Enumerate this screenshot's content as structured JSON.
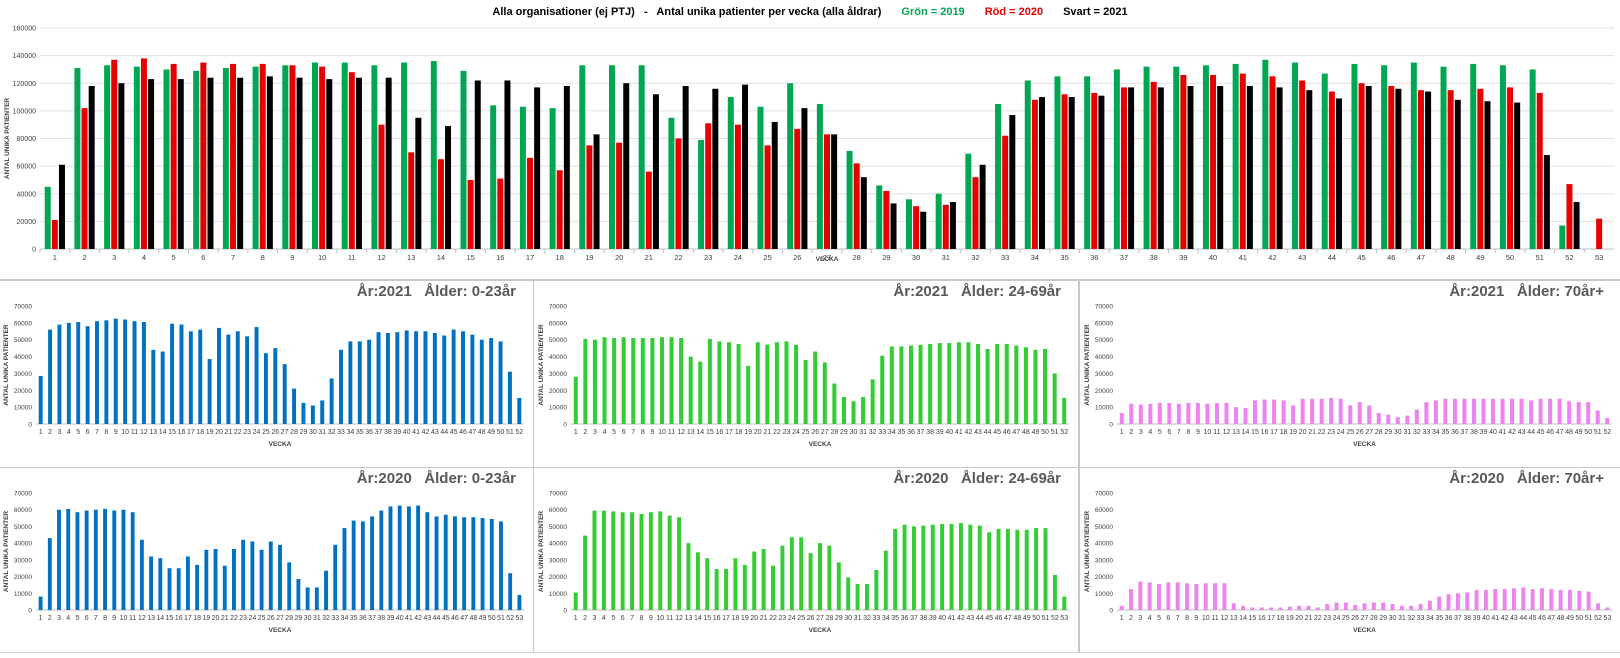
{
  "main_title": {
    "text": "Alla organisationer (ej PTJ)   -   Antal unika patienter per vecka (alla åldrar)",
    "legend_green": "Grön = 2019",
    "legend_red": "Röd = 2020",
    "legend_black": "Svart = 2021"
  },
  "colors": {
    "green": "#00a651",
    "red": "#e60000",
    "black": "#000000",
    "blue": "#0070c0",
    "lime": "#33cc33",
    "pink": "#ee82ee"
  },
  "chart_data": [
    {
      "id": "main",
      "type": "bar",
      "title": "Alla organisationer (ej PTJ)   -   Antal unika patienter per vecka (alla åldrar)",
      "xlabel": "VECKA",
      "ylabel": "ANTAL UNIKA PATIENTER",
      "ylim": [
        0,
        160000
      ],
      "yticks": [
        0,
        20000,
        40000,
        60000,
        80000,
        100000,
        120000,
        140000,
        160000
      ],
      "grid": true,
      "categories": [
        "1",
        "2",
        "3",
        "4",
        "5",
        "6",
        "7",
        "8",
        "9",
        "10",
        "11",
        "12",
        "13",
        "14",
        "15",
        "16",
        "17",
        "18",
        "19",
        "20",
        "21",
        "22",
        "23",
        "24",
        "25",
        "26",
        "27",
        "28",
        "29",
        "30",
        "31",
        "32",
        "33",
        "34",
        "35",
        "36",
        "37",
        "38",
        "39",
        "40",
        "41",
        "42",
        "43",
        "44",
        "45",
        "46",
        "47",
        "48",
        "49",
        "50",
        "51",
        "52",
        "53"
      ],
      "series": [
        {
          "name": "Grön = 2019",
          "color": "#00a651",
          "values": [
            45000,
            131000,
            133000,
            132000,
            130000,
            129000,
            131000,
            132000,
            133000,
            135000,
            135000,
            133000,
            135000,
            136000,
            129000,
            104000,
            103000,
            102000,
            133000,
            133000,
            133000,
            95000,
            79000,
            110000,
            103000,
            120000,
            105000,
            71000,
            46000,
            36000,
            40000,
            69000,
            105000,
            122000,
            125000,
            125000,
            130000,
            132000,
            132000,
            133000,
            134000,
            137000,
            135000,
            127000,
            134000,
            133000,
            135000,
            132000,
            134000,
            133000,
            130000,
            17000,
            null
          ]
        },
        {
          "name": "Röd = 2020",
          "color": "#e60000",
          "values": [
            21000,
            102000,
            137000,
            138000,
            134000,
            135000,
            134000,
            134000,
            133000,
            132000,
            128000,
            90000,
            70000,
            65000,
            50000,
            51000,
            66000,
            57000,
            75000,
            77000,
            56000,
            80000,
            91000,
            90000,
            75000,
            87000,
            83000,
            62000,
            42000,
            31000,
            32000,
            52000,
            82000,
            108000,
            112000,
            113000,
            117000,
            121000,
            126000,
            126000,
            127000,
            125000,
            122000,
            114000,
            120000,
            118000,
            115000,
            115000,
            116000,
            117000,
            113000,
            47000,
            22000
          ]
        },
        {
          "name": "Svart = 2021",
          "color": "#000000",
          "values": [
            61000,
            118000,
            120000,
            123000,
            123000,
            124000,
            124000,
            125000,
            124000,
            123000,
            124000,
            124000,
            95000,
            89000,
            122000,
            122000,
            117000,
            118000,
            83000,
            120000,
            112000,
            118000,
            116000,
            119000,
            92000,
            102000,
            83000,
            52000,
            33000,
            27000,
            34000,
            61000,
            97000,
            110000,
            110000,
            111000,
            117000,
            117000,
            118000,
            118000,
            118000,
            117000,
            115000,
            109000,
            118000,
            116000,
            114000,
            108000,
            107000,
            106000,
            68000,
            34000,
            null
          ]
        }
      ]
    },
    {
      "id": "p2021_0_23",
      "type": "bar",
      "title": "År:2021   Ålder: 0-23år",
      "xlabel": "VECKA",
      "ylabel": "ANTAL UNIKA PATIENTER",
      "ylim": [
        0,
        70000
      ],
      "yticks": [
        0,
        10000,
        20000,
        30000,
        40000,
        50000,
        60000,
        70000
      ],
      "color": "#0070c0",
      "categories": [
        "1",
        "2",
        "3",
        "4",
        "5",
        "6",
        "7",
        "8",
        "9",
        "10",
        "11",
        "12",
        "13",
        "14",
        "15",
        "16",
        "17",
        "18",
        "19",
        "20",
        "21",
        "22",
        "23",
        "24",
        "25",
        "26",
        "27",
        "28",
        "29",
        "30",
        "31",
        "32",
        "33",
        "34",
        "35",
        "36",
        "37",
        "38",
        "39",
        "40",
        "41",
        "42",
        "43",
        "44",
        "45",
        "46",
        "47",
        "48",
        "49",
        "50",
        "51",
        "52"
      ],
      "values": [
        28500,
        56000,
        59000,
        60000,
        60500,
        58000,
        61000,
        61500,
        62500,
        62000,
        61000,
        60500,
        44000,
        43000,
        59500,
        59000,
        55000,
        56000,
        38500,
        57000,
        53000,
        55000,
        52000,
        57500,
        42000,
        45000,
        35500,
        21000,
        12500,
        11000,
        14000,
        27000,
        44000,
        49000,
        49000,
        50000,
        54500,
        54000,
        54500,
        55500,
        55000,
        55000,
        54000,
        52500,
        56000,
        55000,
        53000,
        50000,
        51000,
        49000,
        31000,
        15500
      ]
    },
    {
      "id": "p2021_24_69",
      "type": "bar",
      "title": "År:2021   Ålder: 24-69år",
      "xlabel": "VECKA",
      "ylabel": "ANTAL UNIKA PATIENTER",
      "ylim": [
        0,
        70000
      ],
      "yticks": [
        0,
        10000,
        20000,
        30000,
        40000,
        50000,
        60000,
        70000
      ],
      "color": "#33cc33",
      "categories": [
        "1",
        "2",
        "3",
        "4",
        "5",
        "6",
        "7",
        "8",
        "9",
        "10",
        "11",
        "12",
        "13",
        "14",
        "15",
        "16",
        "17",
        "18",
        "19",
        "20",
        "21",
        "22",
        "23",
        "24",
        "25",
        "26",
        "27",
        "28",
        "29",
        "30",
        "31",
        "32",
        "33",
        "34",
        "35",
        "36",
        "37",
        "38",
        "39",
        "40",
        "41",
        "42",
        "43",
        "44",
        "45",
        "46",
        "47",
        "48",
        "49",
        "50",
        "51",
        "52"
      ],
      "values": [
        28000,
        50500,
        50000,
        51500,
        51000,
        51500,
        51000,
        51000,
        51000,
        51500,
        51500,
        51000,
        40000,
        37000,
        50500,
        49000,
        48500,
        47500,
        34500,
        48500,
        47000,
        48500,
        49000,
        47000,
        38000,
        43000,
        36500,
        24000,
        16000,
        13500,
        16000,
        26500,
        40500,
        46000,
        46000,
        46500,
        47000,
        47500,
        48000,
        48000,
        48500,
        48500,
        47500,
        44500,
        47500,
        47500,
        46500,
        45500,
        44000,
        44500,
        30000,
        15500
      ]
    },
    {
      "id": "p2021_70",
      "type": "bar",
      "title": "År:2021   Ålder: 70år+",
      "xlabel": "VECKA",
      "ylabel": "ANTAL UNIKA PATIENTER",
      "ylim": [
        0,
        70000
      ],
      "yticks": [
        0,
        10000,
        20000,
        30000,
        40000,
        50000,
        60000,
        70000
      ],
      "color": "#ee82ee",
      "categories": [
        "1",
        "2",
        "3",
        "4",
        "5",
        "6",
        "7",
        "8",
        "9",
        "10",
        "11",
        "12",
        "13",
        "14",
        "15",
        "16",
        "17",
        "18",
        "19",
        "20",
        "21",
        "22",
        "23",
        "24",
        "25",
        "26",
        "27",
        "28",
        "29",
        "30",
        "31",
        "32",
        "33",
        "34",
        "35",
        "36",
        "37",
        "38",
        "39",
        "40",
        "41",
        "42",
        "43",
        "44",
        "45",
        "46",
        "47",
        "48",
        "49",
        "50",
        "51",
        "52"
      ],
      "values": [
        6500,
        12000,
        11500,
        12000,
        12500,
        12500,
        12000,
        12500,
        12500,
        12000,
        12500,
        12500,
        10000,
        9500,
        14000,
        14500,
        14500,
        14000,
        11000,
        15000,
        15000,
        15000,
        15500,
        15000,
        11000,
        13000,
        11000,
        6500,
        5500,
        4000,
        5000,
        8500,
        13000,
        14000,
        15000,
        15000,
        15000,
        15000,
        15000,
        15000,
        15000,
        15000,
        15000,
        14000,
        15000,
        15000,
        15000,
        13500,
        13000,
        13000,
        8000,
        3500
      ]
    },
    {
      "id": "p2020_0_23",
      "type": "bar",
      "title": "År:2020   Ålder: 0-23år",
      "xlabel": "VECKA",
      "ylabel": "ANTAL UNIKA PATIENTER",
      "ylim": [
        0,
        70000
      ],
      "yticks": [
        0,
        10000,
        20000,
        30000,
        40000,
        50000,
        60000,
        70000
      ],
      "color": "#0070c0",
      "categories": [
        "1",
        "2",
        "3",
        "4",
        "5",
        "6",
        "7",
        "8",
        "9",
        "10",
        "11",
        "12",
        "13",
        "14",
        "15",
        "16",
        "17",
        "18",
        "19",
        "20",
        "21",
        "22",
        "23",
        "24",
        "25",
        "26",
        "27",
        "28",
        "29",
        "30",
        "31",
        "32",
        "33",
        "34",
        "35",
        "36",
        "37",
        "38",
        "39",
        "40",
        "41",
        "42",
        "43",
        "44",
        "45",
        "46",
        "47",
        "48",
        "49",
        "50",
        "51",
        "52",
        "53"
      ],
      "values": [
        8000,
        43000,
        60000,
        60500,
        58500,
        59500,
        60000,
        60500,
        59500,
        60000,
        58500,
        42000,
        32000,
        31000,
        25000,
        25000,
        32000,
        27000,
        36000,
        36500,
        26500,
        36500,
        42000,
        41000,
        36000,
        41000,
        39000,
        28500,
        18500,
        13500,
        13500,
        23500,
        39000,
        49000,
        53500,
        53000,
        56000,
        59500,
        62000,
        62500,
        62000,
        62500,
        58500,
        56000,
        57000,
        56000,
        55500,
        55500,
        55000,
        54500,
        53000,
        22000,
        9000
      ]
    },
    {
      "id": "p2020_24_69",
      "type": "bar",
      "title": "År:2020   Ålder: 24-69år",
      "xlabel": "VECKA",
      "ylabel": "ANTAL UNIKA PATIENTER",
      "ylim": [
        0,
        70000
      ],
      "yticks": [
        0,
        10000,
        20000,
        30000,
        40000,
        50000,
        60000,
        70000
      ],
      "color": "#33cc33",
      "categories": [
        "1",
        "2",
        "3",
        "4",
        "5",
        "6",
        "7",
        "8",
        "9",
        "10",
        "11",
        "12",
        "13",
        "14",
        "15",
        "16",
        "17",
        "18",
        "19",
        "20",
        "21",
        "22",
        "23",
        "24",
        "25",
        "26",
        "27",
        "28",
        "29",
        "30",
        "31",
        "32",
        "33",
        "34",
        "35",
        "36",
        "37",
        "38",
        "39",
        "40",
        "41",
        "42",
        "43",
        "44",
        "45",
        "46",
        "47",
        "48",
        "49",
        "50",
        "51",
        "52",
        "53"
      ],
      "values": [
        10500,
        44500,
        59500,
        59500,
        59000,
        58500,
        58500,
        57500,
        58500,
        59000,
        56500,
        55500,
        40000,
        34500,
        31000,
        24500,
        24500,
        31000,
        27000,
        35000,
        36500,
        26500,
        38500,
        43500,
        43500,
        34000,
        40000,
        38500,
        28500,
        19500,
        15500,
        15500,
        24000,
        35500,
        48500,
        51000,
        50000,
        50500,
        51000,
        51500,
        51500,
        52000,
        51000,
        50500,
        46500,
        48500,
        48500,
        48000,
        48000,
        49000,
        49000,
        21000,
        8000
      ]
    },
    {
      "id": "p2020_70",
      "type": "bar",
      "title": "År:2020   Ålder: 70år+",
      "xlabel": "VECKA",
      "ylabel": "ANTAL UNIKA PATIENTER",
      "ylim": [
        0,
        70000
      ],
      "yticks": [
        0,
        10000,
        20000,
        30000,
        40000,
        50000,
        60000,
        70000
      ],
      "color": "#ee82ee",
      "categories": [
        "1",
        "2",
        "3",
        "4",
        "5",
        "6",
        "7",
        "8",
        "9",
        "10",
        "11",
        "12",
        "13",
        "14",
        "15",
        "16",
        "17",
        "18",
        "19",
        "20",
        "21",
        "22",
        "23",
        "24",
        "25",
        "26",
        "27",
        "28",
        "29",
        "30",
        "31",
        "32",
        "33",
        "34",
        "35",
        "36",
        "37",
        "38",
        "39",
        "40",
        "41",
        "42",
        "43",
        "44",
        "45",
        "46",
        "47",
        "48",
        "49",
        "50",
        "51",
        "52",
        "53"
      ],
      "values": [
        2500,
        12500,
        17000,
        16500,
        15500,
        16500,
        16500,
        16000,
        15500,
        16000,
        16000,
        16000,
        4000,
        2500,
        1500,
        1500,
        1500,
        1500,
        2000,
        2500,
        2500,
        1500,
        3500,
        4500,
        4500,
        3000,
        4000,
        4500,
        4500,
        3500,
        2500,
        2500,
        3500,
        5500,
        8000,
        9500,
        10000,
        10500,
        12000,
        12000,
        12500,
        12500,
        13000,
        13500,
        12500,
        13000,
        12500,
        12000,
        12000,
        11500,
        11000,
        4000,
        1500
      ]
    }
  ]
}
